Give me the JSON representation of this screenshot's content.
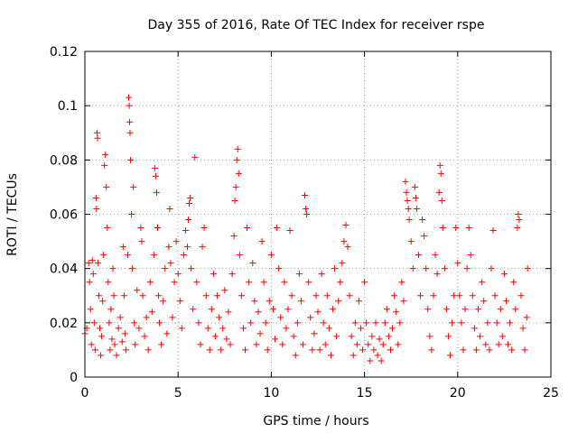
{
  "chart_data": {
    "type": "scatter",
    "title": "Day 355 of 2016, Rate Of TEC Index for receiver rspe",
    "xlabel": "GPS time / hours",
    "ylabel": "ROTI / TECUs",
    "xlim": [
      0,
      25
    ],
    "ylim": [
      0,
      0.12
    ],
    "xticks": [
      0,
      5,
      10,
      15,
      20,
      25
    ],
    "xtick_labels": [
      "0",
      "5",
      "10",
      "15",
      "20",
      "25"
    ],
    "yticks": [
      0,
      0.02,
      0.04,
      0.06,
      0.08,
      0.1,
      0.12
    ],
    "ytick_labels": [
      "0",
      "0.02",
      "0.04",
      "0.06",
      "0.08",
      "0.1",
      "0.12"
    ],
    "grid": true,
    "marker": "+",
    "color": "#ff0000",
    "series": [
      {
        "name": "ROTI",
        "points": [
          [
            0.0,
            0.016
          ],
          [
            0.1,
            0.018
          ],
          [
            0.2,
            0.042
          ],
          [
            0.25,
            0.035
          ],
          [
            0.3,
            0.025
          ],
          [
            0.35,
            0.012
          ],
          [
            0.4,
            0.043
          ],
          [
            0.45,
            0.038
          ],
          [
            0.5,
            0.02
          ],
          [
            0.55,
            0.01
          ],
          [
            0.6,
            0.066
          ],
          [
            0.62,
            0.062
          ],
          [
            0.65,
            0.09
          ],
          [
            0.68,
            0.088
          ],
          [
            0.7,
            0.042
          ],
          [
            0.75,
            0.03
          ],
          [
            0.8,
            0.018
          ],
          [
            0.85,
            0.008
          ],
          [
            0.9,
            0.015
          ],
          [
            0.95,
            0.028
          ],
          [
            1.0,
            0.045
          ],
          [
            1.05,
            0.078
          ],
          [
            1.1,
            0.082
          ],
          [
            1.15,
            0.07
          ],
          [
            1.2,
            0.055
          ],
          [
            1.25,
            0.035
          ],
          [
            1.3,
            0.02
          ],
          [
            1.35,
            0.01
          ],
          [
            1.4,
            0.025
          ],
          [
            1.45,
            0.014
          ],
          [
            1.5,
            0.04
          ],
          [
            1.55,
            0.03
          ],
          [
            1.6,
            0.012
          ],
          [
            1.7,
            0.008
          ],
          [
            1.8,
            0.018
          ],
          [
            1.9,
            0.022
          ],
          [
            2.0,
            0.013
          ],
          [
            2.05,
            0.048
          ],
          [
            2.1,
            0.03
          ],
          [
            2.15,
            0.016
          ],
          [
            2.2,
            0.01
          ],
          [
            2.3,
            0.045
          ],
          [
            2.35,
            0.103
          ],
          [
            2.38,
            0.1
          ],
          [
            2.4,
            0.094
          ],
          [
            2.42,
            0.09
          ],
          [
            2.45,
            0.08
          ],
          [
            2.5,
            0.06
          ],
          [
            2.55,
            0.04
          ],
          [
            2.6,
            0.07
          ],
          [
            2.65,
            0.02
          ],
          [
            2.7,
            0.012
          ],
          [
            2.8,
            0.032
          ],
          [
            2.9,
            0.018
          ],
          [
            3.0,
            0.055
          ],
          [
            3.05,
            0.05
          ],
          [
            3.1,
            0.03
          ],
          [
            3.2,
            0.015
          ],
          [
            3.3,
            0.022
          ],
          [
            3.4,
            0.01
          ],
          [
            3.5,
            0.035
          ],
          [
            3.6,
            0.024
          ],
          [
            3.7,
            0.045
          ],
          [
            3.75,
            0.077
          ],
          [
            3.8,
            0.074
          ],
          [
            3.85,
            0.068
          ],
          [
            3.9,
            0.055
          ],
          [
            3.95,
            0.03
          ],
          [
            4.0,
            0.02
          ],
          [
            4.1,
            0.012
          ],
          [
            4.2,
            0.028
          ],
          [
            4.3,
            0.04
          ],
          [
            4.4,
            0.016
          ],
          [
            4.5,
            0.048
          ],
          [
            4.55,
            0.062
          ],
          [
            4.6,
            0.042
          ],
          [
            4.7,
            0.022
          ],
          [
            4.8,
            0.035
          ],
          [
            4.9,
            0.05
          ],
          [
            5.0,
            0.038
          ],
          [
            5.1,
            0.028
          ],
          [
            5.2,
            0.018
          ],
          [
            5.3,
            0.045
          ],
          [
            5.4,
            0.054
          ],
          [
            5.5,
            0.048
          ],
          [
            5.55,
            0.058
          ],
          [
            5.6,
            0.064
          ],
          [
            5.65,
            0.066
          ],
          [
            5.7,
            0.04
          ],
          [
            5.8,
            0.025
          ],
          [
            5.9,
            0.081
          ],
          [
            6.0,
            0.035
          ],
          [
            6.1,
            0.02
          ],
          [
            6.2,
            0.012
          ],
          [
            6.3,
            0.048
          ],
          [
            6.4,
            0.055
          ],
          [
            6.5,
            0.03
          ],
          [
            6.6,
            0.018
          ],
          [
            6.7,
            0.01
          ],
          [
            6.8,
            0.025
          ],
          [
            6.9,
            0.038
          ],
          [
            7.0,
            0.015
          ],
          [
            7.1,
            0.03
          ],
          [
            7.2,
            0.022
          ],
          [
            7.3,
            0.01
          ],
          [
            7.4,
            0.018
          ],
          [
            7.5,
            0.032
          ],
          [
            7.6,
            0.014
          ],
          [
            7.7,
            0.024
          ],
          [
            7.8,
            0.012
          ],
          [
            7.9,
            0.038
          ],
          [
            8.0,
            0.052
          ],
          [
            8.05,
            0.065
          ],
          [
            8.1,
            0.07
          ],
          [
            8.15,
            0.08
          ],
          [
            8.2,
            0.084
          ],
          [
            8.25,
            0.075
          ],
          [
            8.3,
            0.045
          ],
          [
            8.4,
            0.03
          ],
          [
            8.5,
            0.018
          ],
          [
            8.6,
            0.01
          ],
          [
            8.7,
            0.055
          ],
          [
            8.8,
            0.035
          ],
          [
            8.9,
            0.02
          ],
          [
            9.0,
            0.042
          ],
          [
            9.1,
            0.028
          ],
          [
            9.2,
            0.012
          ],
          [
            9.3,
            0.024
          ],
          [
            9.4,
            0.016
          ],
          [
            9.5,
            0.05
          ],
          [
            9.6,
            0.035
          ],
          [
            9.7,
            0.02
          ],
          [
            9.8,
            0.01
          ],
          [
            9.9,
            0.028
          ],
          [
            10.0,
            0.045
          ],
          [
            10.1,
            0.025
          ],
          [
            10.2,
            0.014
          ],
          [
            10.3,
            0.055
          ],
          [
            10.4,
            0.04
          ],
          [
            10.5,
            0.022
          ],
          [
            10.6,
            0.012
          ],
          [
            10.7,
            0.035
          ],
          [
            10.8,
            0.018
          ],
          [
            10.9,
            0.025
          ],
          [
            11.0,
            0.054
          ],
          [
            11.1,
            0.03
          ],
          [
            11.2,
            0.015
          ],
          [
            11.3,
            0.008
          ],
          [
            11.4,
            0.02
          ],
          [
            11.5,
            0.038
          ],
          [
            11.6,
            0.028
          ],
          [
            11.7,
            0.012
          ],
          [
            11.8,
            0.067
          ],
          [
            11.85,
            0.062
          ],
          [
            11.9,
            0.06
          ],
          [
            12.0,
            0.035
          ],
          [
            12.1,
            0.022
          ],
          [
            12.2,
            0.01
          ],
          [
            12.3,
            0.016
          ],
          [
            12.4,
            0.03
          ],
          [
            12.5,
            0.024
          ],
          [
            12.6,
            0.01
          ],
          [
            12.7,
            0.038
          ],
          [
            12.8,
            0.02
          ],
          [
            12.9,
            0.012
          ],
          [
            13.0,
            0.03
          ],
          [
            13.1,
            0.018
          ],
          [
            13.2,
            0.008
          ],
          [
            13.3,
            0.025
          ],
          [
            13.4,
            0.04
          ],
          [
            13.5,
            0.015
          ],
          [
            13.6,
            0.028
          ],
          [
            13.7,
            0.035
          ],
          [
            13.8,
            0.042
          ],
          [
            13.9,
            0.05
          ],
          [
            14.0,
            0.056
          ],
          [
            14.1,
            0.048
          ],
          [
            14.2,
            0.03
          ],
          [
            14.3,
            0.015
          ],
          [
            14.4,
            0.008
          ],
          [
            14.5,
            0.02
          ],
          [
            14.6,
            0.012
          ],
          [
            14.7,
            0.028
          ],
          [
            14.8,
            0.018
          ],
          [
            14.9,
            0.01
          ],
          [
            15.0,
            0.035
          ],
          [
            15.1,
            0.02
          ],
          [
            15.2,
            0.012
          ],
          [
            15.3,
            0.006
          ],
          [
            15.4,
            0.015
          ],
          [
            15.5,
            0.01
          ],
          [
            15.6,
            0.02
          ],
          [
            15.7,
            0.008
          ],
          [
            15.8,
            0.014
          ],
          [
            15.9,
            0.006
          ],
          [
            16.0,
            0.012
          ],
          [
            16.1,
            0.02
          ],
          [
            16.2,
            0.025
          ],
          [
            16.3,
            0.015
          ],
          [
            16.4,
            0.01
          ],
          [
            16.5,
            0.018
          ],
          [
            16.6,
            0.03
          ],
          [
            16.7,
            0.024
          ],
          [
            16.8,
            0.012
          ],
          [
            16.9,
            0.02
          ],
          [
            17.0,
            0.035
          ],
          [
            17.1,
            0.028
          ],
          [
            17.2,
            0.072
          ],
          [
            17.25,
            0.068
          ],
          [
            17.3,
            0.065
          ],
          [
            17.35,
            0.062
          ],
          [
            17.4,
            0.058
          ],
          [
            17.5,
            0.05
          ],
          [
            17.6,
            0.04
          ],
          [
            17.7,
            0.07
          ],
          [
            17.75,
            0.066
          ],
          [
            17.8,
            0.062
          ],
          [
            17.9,
            0.045
          ],
          [
            18.0,
            0.03
          ],
          [
            18.1,
            0.058
          ],
          [
            18.2,
            0.052
          ],
          [
            18.3,
            0.04
          ],
          [
            18.4,
            0.025
          ],
          [
            18.5,
            0.015
          ],
          [
            18.6,
            0.01
          ],
          [
            18.7,
            0.03
          ],
          [
            18.8,
            0.045
          ],
          [
            18.9,
            0.038
          ],
          [
            19.0,
            0.068
          ],
          [
            19.05,
            0.078
          ],
          [
            19.1,
            0.075
          ],
          [
            19.15,
            0.065
          ],
          [
            19.2,
            0.055
          ],
          [
            19.3,
            0.04
          ],
          [
            19.4,
            0.025
          ],
          [
            19.5,
            0.015
          ],
          [
            19.6,
            0.008
          ],
          [
            19.7,
            0.02
          ],
          [
            19.8,
            0.03
          ],
          [
            19.9,
            0.055
          ],
          [
            20.0,
            0.042
          ],
          [
            20.1,
            0.03
          ],
          [
            20.2,
            0.02
          ],
          [
            20.3,
            0.01
          ],
          [
            20.4,
            0.025
          ],
          [
            20.5,
            0.04
          ],
          [
            20.6,
            0.055
          ],
          [
            20.7,
            0.045
          ],
          [
            20.8,
            0.03
          ],
          [
            20.9,
            0.018
          ],
          [
            21.0,
            0.01
          ],
          [
            21.1,
            0.025
          ],
          [
            21.2,
            0.015
          ],
          [
            21.3,
            0.035
          ],
          [
            21.4,
            0.028
          ],
          [
            21.5,
            0.012
          ],
          [
            21.6,
            0.02
          ],
          [
            21.7,
            0.01
          ],
          [
            21.8,
            0.04
          ],
          [
            21.9,
            0.054
          ],
          [
            22.0,
            0.03
          ],
          [
            22.1,
            0.02
          ],
          [
            22.2,
            0.012
          ],
          [
            22.3,
            0.025
          ],
          [
            22.4,
            0.015
          ],
          [
            22.5,
            0.038
          ],
          [
            22.6,
            0.028
          ],
          [
            22.7,
            0.012
          ],
          [
            22.8,
            0.02
          ],
          [
            22.9,
            0.01
          ],
          [
            23.0,
            0.035
          ],
          [
            23.1,
            0.025
          ],
          [
            23.2,
            0.055
          ],
          [
            23.25,
            0.06
          ],
          [
            23.3,
            0.058
          ],
          [
            23.4,
            0.03
          ],
          [
            23.5,
            0.018
          ],
          [
            23.6,
            0.01
          ],
          [
            23.7,
            0.022
          ],
          [
            23.75,
            0.04
          ]
        ]
      }
    ]
  }
}
